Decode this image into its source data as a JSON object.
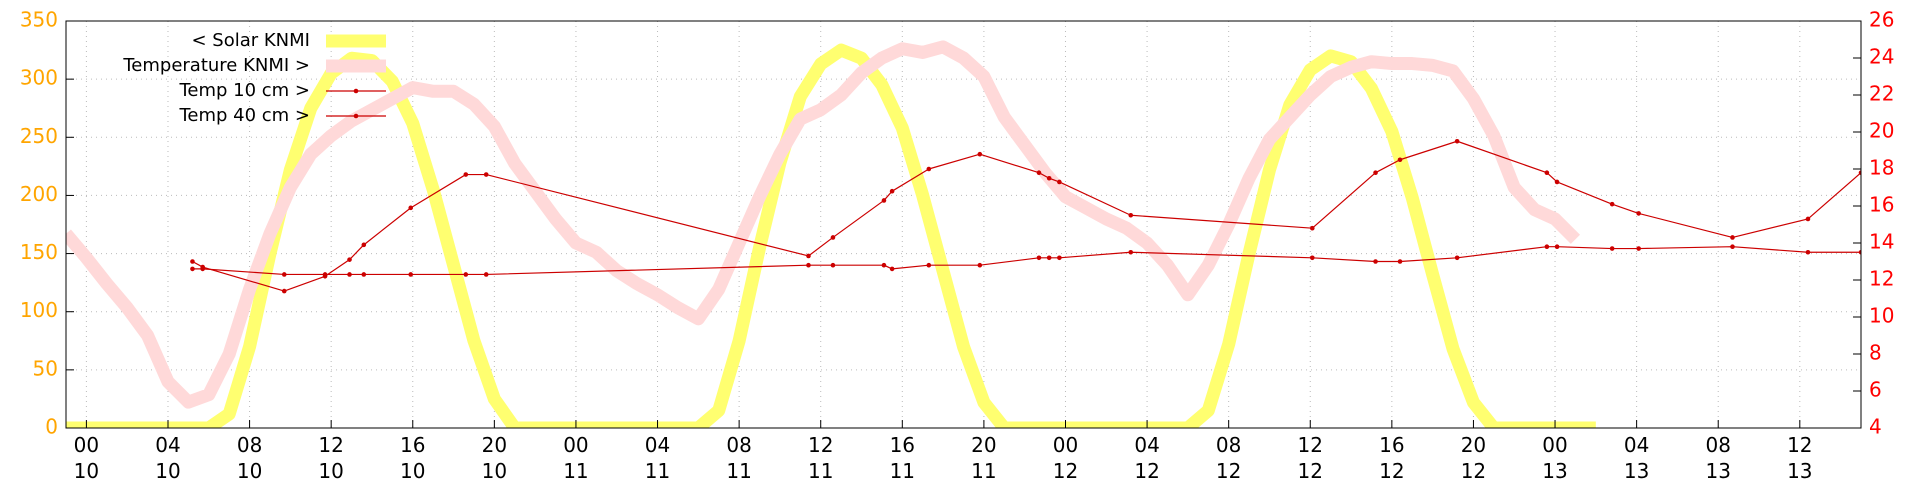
{
  "chart_data": {
    "type": "line",
    "xlim": [
      -1,
      87
    ],
    "xticks": [
      {
        "value": 0,
        "label": "00\n10"
      },
      {
        "value": 4,
        "label": "04\n10"
      },
      {
        "value": 8,
        "label": "08\n10"
      },
      {
        "value": 12,
        "label": "12\n10"
      },
      {
        "value": 16,
        "label": "16\n10"
      },
      {
        "value": 20,
        "label": "20\n10"
      },
      {
        "value": 24,
        "label": "00\n11"
      },
      {
        "value": 28,
        "label": "04\n11"
      },
      {
        "value": 32,
        "label": "08\n11"
      },
      {
        "value": 36,
        "label": "12\n11"
      },
      {
        "value": 40,
        "label": "16\n11"
      },
      {
        "value": 44,
        "label": "20\n11"
      },
      {
        "value": 48,
        "label": "00\n12"
      },
      {
        "value": 52,
        "label": "04\n12"
      },
      {
        "value": 56,
        "label": "08\n12"
      },
      {
        "value": 60,
        "label": "12\n12"
      },
      {
        "value": 64,
        "label": "16\n12"
      },
      {
        "value": 68,
        "label": "20\n12"
      },
      {
        "value": 72,
        "label": "00\n13"
      },
      {
        "value": 76,
        "label": "04\n13"
      },
      {
        "value": 80,
        "label": "08\n13"
      },
      {
        "value": 84,
        "label": "12\n13"
      }
    ],
    "ylim": [
      0,
      350
    ],
    "yticks": [
      0,
      50,
      100,
      150,
      200,
      250,
      300,
      350
    ],
    "y2lim": [
      4,
      26
    ],
    "y2ticks": [
      4,
      6,
      8,
      10,
      12,
      14,
      16,
      18,
      20,
      22,
      24,
      26
    ],
    "grid": true,
    "legend": "upper left",
    "series": [
      {
        "name": "< Solar KNMI",
        "color": "#ffff70",
        "x": [
          -1,
          0,
          1,
          2,
          3,
          4,
          5,
          6,
          7,
          8,
          9,
          10,
          11,
          12,
          13,
          14,
          15,
          16,
          17,
          18,
          19,
          20,
          21,
          22,
          23,
          24,
          25,
          26,
          27,
          28,
          29,
          30,
          31,
          32,
          33,
          34,
          35,
          36,
          37,
          38,
          39,
          40,
          41,
          42,
          43,
          44,
          45,
          46,
          47,
          48,
          49,
          50,
          51,
          52,
          53,
          54,
          55,
          56,
          57,
          58,
          59,
          60,
          61,
          62,
          63,
          64,
          65,
          66,
          67,
          68,
          69,
          70,
          71,
          72,
          73,
          74
        ],
        "values": [
          0,
          0,
          0,
          0,
          0,
          0,
          0,
          0,
          12,
          70,
          150,
          222,
          275,
          305,
          318,
          316,
          298,
          262,
          205,
          140,
          75,
          25,
          0,
          0,
          0,
          0,
          0,
          0,
          0,
          0,
          0,
          0,
          15,
          75,
          155,
          228,
          285,
          313,
          325,
          318,
          295,
          258,
          200,
          135,
          70,
          22,
          0,
          0,
          0,
          0,
          0,
          0,
          0,
          0,
          0,
          0,
          15,
          72,
          150,
          222,
          278,
          308,
          320,
          315,
          292,
          255,
          198,
          132,
          68,
          22,
          0,
          0,
          0,
          0,
          0,
          0
        ]
      },
      {
        "name": "Temperature KNMI >",
        "color": "#ffd9d9",
        "axis": "y2",
        "x": [
          -1,
          0,
          1,
          2,
          3,
          4,
          5,
          6,
          7,
          8,
          9,
          10,
          11,
          12,
          13,
          14,
          15,
          16,
          17,
          18,
          19,
          20,
          21,
          22,
          23,
          24,
          25,
          26,
          27,
          28,
          29,
          30,
          31,
          32,
          33,
          34,
          35,
          36,
          37,
          38,
          39,
          40,
          41,
          42,
          43,
          44,
          45,
          46,
          47,
          48,
          49,
          50,
          51,
          52,
          53,
          54,
          55,
          56,
          57,
          58,
          59,
          60,
          61,
          62,
          63,
          64,
          65,
          66,
          67,
          68,
          69,
          70,
          71,
          72,
          73
        ],
        "values": [
          14.5,
          13.2,
          11.8,
          10.5,
          9,
          6.5,
          5.4,
          5.8,
          8,
          11.5,
          14.5,
          17,
          18.8,
          19.8,
          20.6,
          21.2,
          21.8,
          22.4,
          22.2,
          22.2,
          21.5,
          20.3,
          18.3,
          16.8,
          15.3,
          14,
          13.5,
          12.5,
          11.8,
          11.2,
          10.5,
          9.9,
          11.5,
          14,
          16.5,
          18.8,
          20.7,
          21.2,
          22,
          23.2,
          24,
          24.5,
          24.3,
          24.6,
          24,
          23,
          20.8,
          19.3,
          17.8,
          16.5,
          15.9,
          15.3,
          14.8,
          14,
          12.8,
          11.2,
          12.8,
          15,
          17.5,
          19.6,
          20.8,
          22,
          23,
          23.5,
          23.8,
          23.7,
          23.7,
          23.6,
          23.3,
          21.8,
          19.8,
          17,
          15.8,
          15.3,
          14.2
        ]
      },
      {
        "name": "Temp 10 cm >",
        "color": "#cc0000",
        "axis": "y2",
        "markers": true,
        "x": [
          5.2,
          5.7,
          9.7,
          11.7,
          12.9,
          13.6,
          15.9,
          18.6,
          19.6,
          35.4,
          36.6,
          39.1,
          39.5,
          41.3,
          43.8,
          46.7,
          47.2,
          47.7,
          51.2,
          60.1,
          63.2,
          64.4,
          67.2,
          71.6,
          72.1,
          74.8,
          76.1,
          80.7,
          84.4,
          87
        ],
        "values": [
          13,
          12.7,
          11.4,
          12.2,
          13.1,
          13.9,
          15.9,
          17.7,
          17.7,
          13.3,
          14.3,
          16.3,
          16.8,
          18,
          18.8,
          17.8,
          17.5,
          17.3,
          15.5,
          14.8,
          17.8,
          18.5,
          19.5,
          17.8,
          17.3,
          16.1,
          15.6,
          14.3,
          15.3,
          17.8
        ]
      },
      {
        "name": "Temp 40 cm >",
        "color": "#cc0000",
        "axis": "y2",
        "markers": true,
        "x": [
          5.2,
          5.7,
          9.7,
          11.7,
          12.9,
          13.6,
          15.9,
          18.6,
          19.6,
          35.4,
          36.6,
          39.1,
          39.5,
          41.3,
          43.8,
          46.7,
          47.2,
          47.7,
          51.2,
          60.1,
          63.2,
          64.4,
          67.2,
          71.6,
          72.1,
          74.8,
          76.1,
          80.7,
          84.4,
          87
        ],
        "values": [
          12.6,
          12.6,
          12.3,
          12.3,
          12.3,
          12.3,
          12.3,
          12.3,
          12.3,
          12.8,
          12.8,
          12.8,
          12.6,
          12.8,
          12.8,
          13.2,
          13.2,
          13.2,
          13.5,
          13.2,
          13,
          13,
          13.2,
          13.8,
          13.8,
          13.7,
          13.7,
          13.8,
          13.5,
          13.5
        ]
      }
    ]
  }
}
